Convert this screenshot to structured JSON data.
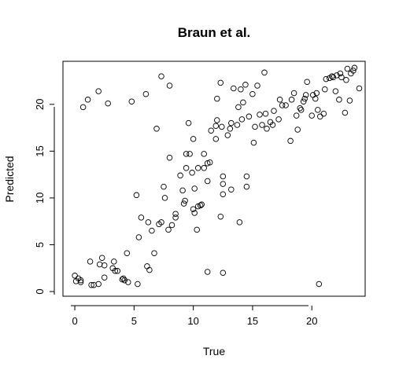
{
  "chart_data": {
    "type": "scatter",
    "title": "Braun et al.",
    "xlabel": "True",
    "ylabel": "Predicted",
    "xlim": [
      -1,
      24.5
    ],
    "ylim": [
      -0.5,
      24.6
    ],
    "xticks": [
      0,
      5,
      10,
      15,
      20
    ],
    "yticks": [
      0,
      5,
      10,
      15,
      20
    ],
    "marker": "open-circle",
    "color": "#000000",
    "grid": false,
    "points": [
      [
        0.0,
        1.7
      ],
      [
        0.1,
        1.1
      ],
      [
        0.3,
        1.4
      ],
      [
        0.5,
        1.0
      ],
      [
        0.5,
        1.2
      ],
      [
        0.7,
        19.7
      ],
      [
        1.1,
        20.5
      ],
      [
        1.3,
        3.2
      ],
      [
        1.4,
        0.7
      ],
      [
        1.6,
        0.7
      ],
      [
        2.0,
        21.4
      ],
      [
        2.0,
        0.8
      ],
      [
        2.1,
        2.9
      ],
      [
        2.3,
        3.6
      ],
      [
        2.5,
        2.8
      ],
      [
        2.5,
        1.5
      ],
      [
        2.8,
        20.1
      ],
      [
        3.2,
        2.5
      ],
      [
        3.3,
        3.2
      ],
      [
        3.4,
        2.2
      ],
      [
        3.6,
        2.2
      ],
      [
        4.0,
        1.3
      ],
      [
        4.1,
        1.4
      ],
      [
        4.2,
        1.2
      ],
      [
        4.5,
        1.0
      ],
      [
        4.4,
        4.1
      ],
      [
        4.8,
        20.3
      ],
      [
        5.2,
        10.3
      ],
      [
        5.3,
        0.8
      ],
      [
        5.4,
        5.8
      ],
      [
        5.6,
        7.9
      ],
      [
        6.0,
        21.1
      ],
      [
        6.1,
        2.7
      ],
      [
        6.2,
        7.4
      ],
      [
        6.3,
        2.3
      ],
      [
        6.5,
        6.5
      ],
      [
        6.7,
        4.1
      ],
      [
        6.9,
        17.4
      ],
      [
        7.1,
        7.2
      ],
      [
        7.3,
        7.4
      ],
      [
        7.3,
        23.0
      ],
      [
        7.5,
        11.2
      ],
      [
        7.6,
        10.0
      ],
      [
        7.9,
        6.6
      ],
      [
        8.0,
        14.3
      ],
      [
        8.0,
        22.0
      ],
      [
        8.2,
        7.1
      ],
      [
        8.5,
        7.9
      ],
      [
        8.5,
        8.3
      ],
      [
        8.9,
        12.4
      ],
      [
        9.1,
        10.8
      ],
      [
        9.2,
        9.4
      ],
      [
        9.3,
        9.7
      ],
      [
        9.4,
        14.7
      ],
      [
        9.4,
        13.2
      ],
      [
        9.6,
        18.0
      ],
      [
        9.7,
        14.7
      ],
      [
        9.9,
        12.7
      ],
      [
        10.0,
        16.3
      ],
      [
        10.0,
        8.8
      ],
      [
        10.1,
        11.0
      ],
      [
        10.1,
        8.4
      ],
      [
        10.3,
        6.6
      ],
      [
        10.4,
        13.2
      ],
      [
        10.4,
        9.1
      ],
      [
        10.6,
        9.2
      ],
      [
        10.7,
        9.3
      ],
      [
        10.9,
        13.2
      ],
      [
        10.9,
        14.7
      ],
      [
        11.2,
        2.1
      ],
      [
        11.2,
        13.7
      ],
      [
        11.2,
        11.8
      ],
      [
        11.4,
        13.8
      ],
      [
        11.5,
        17.2
      ],
      [
        11.9,
        17.7
      ],
      [
        11.9,
        16.3
      ],
      [
        12.0,
        18.3
      ],
      [
        12.0,
        20.6
      ],
      [
        12.3,
        22.3
      ],
      [
        12.3,
        8.0
      ],
      [
        12.4,
        17.6
      ],
      [
        12.5,
        10.4
      ],
      [
        12.5,
        11.5
      ],
      [
        12.5,
        12.3
      ],
      [
        12.5,
        2.0
      ],
      [
        12.9,
        16.7
      ],
      [
        13.1,
        17.4
      ],
      [
        13.2,
        18.0
      ],
      [
        13.2,
        10.9
      ],
      [
        13.4,
        21.7
      ],
      [
        13.7,
        17.8
      ],
      [
        13.8,
        19.7
      ],
      [
        13.9,
        7.4
      ],
      [
        14.0,
        21.6
      ],
      [
        14.1,
        18.4
      ],
      [
        14.2,
        20.2
      ],
      [
        14.4,
        22.1
      ],
      [
        14.5,
        12.3
      ],
      [
        14.5,
        11.2
      ],
      [
        14.7,
        18.7
      ],
      [
        15.0,
        21.1
      ],
      [
        15.1,
        15.9
      ],
      [
        15.2,
        17.6
      ],
      [
        15.4,
        22.0
      ],
      [
        15.6,
        18.9
      ],
      [
        15.8,
        17.8
      ],
      [
        16.0,
        23.4
      ],
      [
        16.1,
        19.0
      ],
      [
        16.2,
        17.4
      ],
      [
        16.5,
        18.1
      ],
      [
        16.7,
        17.8
      ],
      [
        16.8,
        19.3
      ],
      [
        17.2,
        18.4
      ],
      [
        17.3,
        20.5
      ],
      [
        17.5,
        19.9
      ],
      [
        17.8,
        19.9
      ],
      [
        18.2,
        16.1
      ],
      [
        18.3,
        20.5
      ],
      [
        18.5,
        21.2
      ],
      [
        18.7,
        18.8
      ],
      [
        18.8,
        17.3
      ],
      [
        19.0,
        19.6
      ],
      [
        19.1,
        19.4
      ],
      [
        19.3,
        20.3
      ],
      [
        19.4,
        20.6
      ],
      [
        19.5,
        21.0
      ],
      [
        19.6,
        22.4
      ],
      [
        20.0,
        18.8
      ],
      [
        20.1,
        21.0
      ],
      [
        20.3,
        20.6
      ],
      [
        20.4,
        21.2
      ],
      [
        20.5,
        19.4
      ],
      [
        20.6,
        0.8
      ],
      [
        20.7,
        18.7
      ],
      [
        21.0,
        19.0
      ],
      [
        21.1,
        21.6
      ],
      [
        21.2,
        22.7
      ],
      [
        21.5,
        22.8
      ],
      [
        21.7,
        23.0
      ],
      [
        21.8,
        22.9
      ],
      [
        22.0,
        21.4
      ],
      [
        22.1,
        23.1
      ],
      [
        22.3,
        20.5
      ],
      [
        22.4,
        23.3
      ],
      [
        22.5,
        22.9
      ],
      [
        22.8,
        19.1
      ],
      [
        22.9,
        22.6
      ],
      [
        23.0,
        23.8
      ],
      [
        23.2,
        20.4
      ],
      [
        23.3,
        23.3
      ],
      [
        23.5,
        23.6
      ],
      [
        23.6,
        23.9
      ],
      [
        24.0,
        21.7
      ]
    ]
  }
}
